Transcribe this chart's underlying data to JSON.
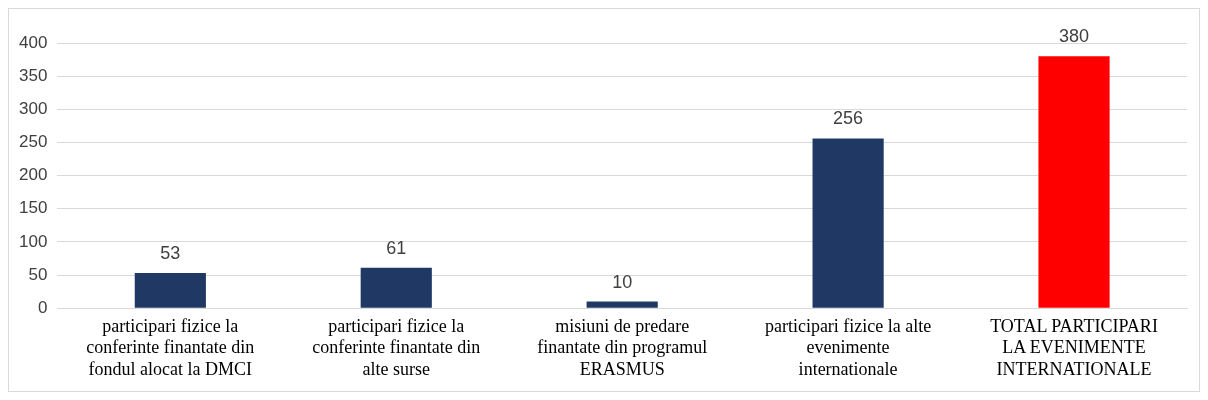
{
  "chart_data": {
    "type": "bar",
    "categories": [
      "participari fizice la conferinte finantate din fondul alocat la DMCI",
      "participari fizice la conferinte finantate din alte surse",
      "misiuni de predare finantate din programul ERASMUS",
      "participari fizice la alte evenimente internationale",
      "TOTAL PARTICIPARI LA EVENIMENTE INTERNATIONALE"
    ],
    "values": [
      53,
      61,
      10,
      256,
      380
    ],
    "colors": [
      "#1f3864",
      "#1f3864",
      "#1f3864",
      "#1f3864",
      "#ff0000"
    ],
    "ylim": [
      0,
      400
    ],
    "yticks": [
      0,
      50,
      100,
      150,
      200,
      250,
      300,
      350,
      400
    ],
    "grid": "y",
    "legend": false,
    "data_labels": true
  }
}
